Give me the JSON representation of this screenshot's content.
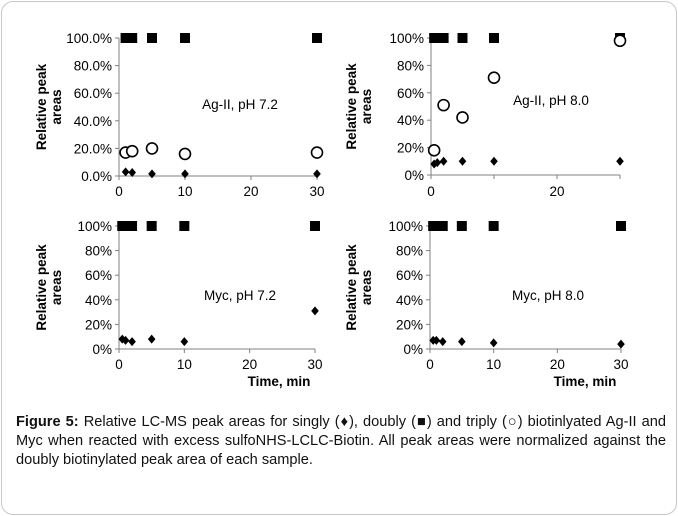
{
  "figure": {
    "caption_label": "Figure 5:",
    "caption_text": " Relative LC-MS peak areas for singly (♦), doubly (■) and triply (○) biotinlyated Ag-II and Myc when reacted with excess sulfoNHS-LCLC-Biotin. All peak areas were normalized against the doubly biotinylated peak area of each sample."
  },
  "chart_data": [
    {
      "type": "scatter",
      "title": "Ag-II, pH 7.2",
      "ylabel": "Relative peak areas",
      "xlabel": "",
      "xlim": [
        0,
        30
      ],
      "ylim": [
        0,
        100
      ],
      "xticks": [
        "0",
        "10",
        "20",
        "30"
      ],
      "yticks": [
        "0.0%",
        "20.0%",
        "40.0%",
        "60.0%",
        "80.0%",
        "100.0%"
      ],
      "series": [
        {
          "marker": "square",
          "points": [
            [
              1,
              100
            ],
            [
              2,
              100
            ],
            [
              5,
              100
            ],
            [
              10,
              100
            ],
            [
              30,
              100
            ]
          ]
        },
        {
          "marker": "diamond",
          "points": [
            [
              1,
              3
            ],
            [
              2,
              2.5
            ],
            [
              5,
              1.5
            ],
            [
              10,
              1.5
            ],
            [
              30,
              1.5
            ]
          ]
        },
        {
          "marker": "open-circle",
          "points": [
            [
              1,
              17
            ],
            [
              2,
              18
            ],
            [
              5,
              20
            ],
            [
              10,
              16
            ],
            [
              30,
              17
            ]
          ]
        }
      ]
    },
    {
      "type": "scatter",
      "title": "Ag-II, pH 8.0",
      "ylabel": "Relative peak areas",
      "xlabel": "",
      "xlim": [
        0,
        30
      ],
      "ylim": [
        0,
        100
      ],
      "xticks": [
        "0",
        "",
        "20",
        ""
      ],
      "yticks": [
        "0%",
        "20%",
        "40%",
        "60%",
        "80%",
        "100%"
      ],
      "series": [
        {
          "marker": "square",
          "points": [
            [
              0.5,
              100
            ],
            [
              1,
              100
            ],
            [
              2,
              100
            ],
            [
              5,
              100
            ],
            [
              10,
              100
            ],
            [
              30,
              100
            ]
          ]
        },
        {
          "marker": "diamond",
          "points": [
            [
              0.5,
              8
            ],
            [
              1,
              9
            ],
            [
              2,
              10
            ],
            [
              5,
              10
            ],
            [
              10,
              10
            ],
            [
              30,
              10
            ]
          ]
        },
        {
          "marker": "open-circle",
          "points": [
            [
              0.5,
              18
            ],
            [
              2,
              51
            ],
            [
              5,
              42
            ],
            [
              10,
              71
            ],
            [
              30,
              98
            ]
          ]
        }
      ]
    },
    {
      "type": "scatter",
      "title": "Myc, pH 7.2",
      "ylabel": "Relative peak areas",
      "xlabel": "",
      "xlim": [
        0,
        30
      ],
      "ylim": [
        0,
        100
      ],
      "xticks": [
        "0",
        "10",
        "20",
        "30"
      ],
      "yticks": [
        "0%",
        "20%",
        "40%",
        "60%",
        "80%",
        "100%"
      ],
      "series": [
        {
          "marker": "square",
          "points": [
            [
              0.5,
              100
            ],
            [
              1,
              100
            ],
            [
              2,
              100
            ],
            [
              5,
              100
            ],
            [
              10,
              100
            ],
            [
              30,
              100
            ]
          ]
        },
        {
          "marker": "diamond",
          "points": [
            [
              0.5,
              8
            ],
            [
              1,
              7
            ],
            [
              2,
              6
            ],
            [
              5,
              8
            ],
            [
              10,
              6
            ],
            [
              30,
              31
            ]
          ]
        }
      ]
    },
    {
      "type": "scatter",
      "title": "Myc, pH 8.0",
      "ylabel": "Relative peak areas",
      "xlabel": "Time, min",
      "xlim": [
        0,
        30
      ],
      "ylim": [
        0,
        100
      ],
      "xticks": [
        "0",
        "10",
        "20",
        "30"
      ],
      "yticks": [
        "0%",
        "20%",
        "40%",
        "60%",
        "80%",
        "100%"
      ],
      "series": [
        {
          "marker": "square",
          "points": [
            [
              0.5,
              100
            ],
            [
              1,
              100
            ],
            [
              2,
              100
            ],
            [
              5,
              100
            ],
            [
              10,
              100
            ],
            [
              30,
              100
            ]
          ]
        },
        {
          "marker": "diamond",
          "points": [
            [
              0.5,
              7
            ],
            [
              1,
              7
            ],
            [
              2,
              6
            ],
            [
              5,
              6
            ],
            [
              10,
              5
            ],
            [
              30,
              4
            ]
          ]
        }
      ]
    }
  ],
  "shared_xlabel_left": "Time, min",
  "colors": {
    "marker": "#000000",
    "axis": "#808080"
  }
}
